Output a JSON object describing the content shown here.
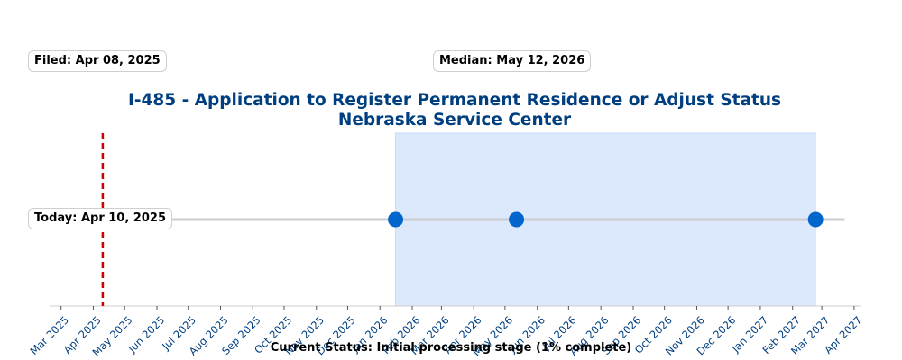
{
  "chart_data": {
    "type": "scatter",
    "title": "I-485 - Application to Register Permanent Residence or Adjust Status",
    "subtitle": "Nebraska Service Center",
    "x_axis": {
      "type": "date",
      "range": [
        "2025-02-18",
        "2027-04-08"
      ],
      "tick_labels": [
        "Mar 2025",
        "Apr 2025",
        "May 2025",
        "Jun 2025",
        "Jul 2025",
        "Aug 2025",
        "Sep 2025",
        "Oct 2025",
        "Nov 2025",
        "Dec 2025",
        "Jan 2026",
        "Feb 2026",
        "Mar 2026",
        "Apr 2026",
        "May 2026",
        "Jun 2026",
        "Jul 2026",
        "Aug 2026",
        "Sep 2026",
        "Oct 2026",
        "Nov 2026",
        "Dec 2026",
        "Jan 2027",
        "Feb 2027",
        "Mar 2027",
        "Apr 2027"
      ],
      "tick_dates": [
        "2025-03-01",
        "2025-04-01",
        "2025-05-01",
        "2025-06-01",
        "2025-07-01",
        "2025-08-01",
        "2025-09-01",
        "2025-10-01",
        "2025-11-01",
        "2025-12-01",
        "2026-01-01",
        "2026-02-01",
        "2026-03-01",
        "2026-04-01",
        "2026-05-01",
        "2026-06-01",
        "2026-07-01",
        "2026-08-01",
        "2026-09-01",
        "2026-10-01",
        "2026-11-01",
        "2026-12-01",
        "2027-01-01",
        "2027-02-01",
        "2027-03-01",
        "2027-04-01"
      ]
    },
    "timeline": {
      "start": "2025-04-08",
      "end": "2027-03-23"
    },
    "points": [
      {
        "date": "2025-04-08",
        "color": "#cfd8e3"
      },
      {
        "date": "2026-01-16",
        "color": "#0066cc"
      },
      {
        "date": "2026-05-12",
        "color": "#0066cc"
      },
      {
        "date": "2027-02-23",
        "color": "#0066cc"
      }
    ],
    "estimate_range": {
      "start": "2026-01-16",
      "end": "2027-02-23",
      "color": "#dce9fc"
    },
    "today_line": {
      "date": "2025-04-10",
      "color": "#cc0000",
      "style": "dashed"
    },
    "annotations": {
      "filed": "Filed: Apr 08, 2025",
      "median": "Median: May 12, 2026",
      "today": "Today: Apr 10, 2025"
    },
    "status_text": "Current Status: Initial processing stage (1% complete)",
    "grid": false,
    "colors": {
      "title": "#003f7f",
      "tick_labels": "#003f7f",
      "line": "#cccccc",
      "axis": "#cccccc"
    }
  }
}
